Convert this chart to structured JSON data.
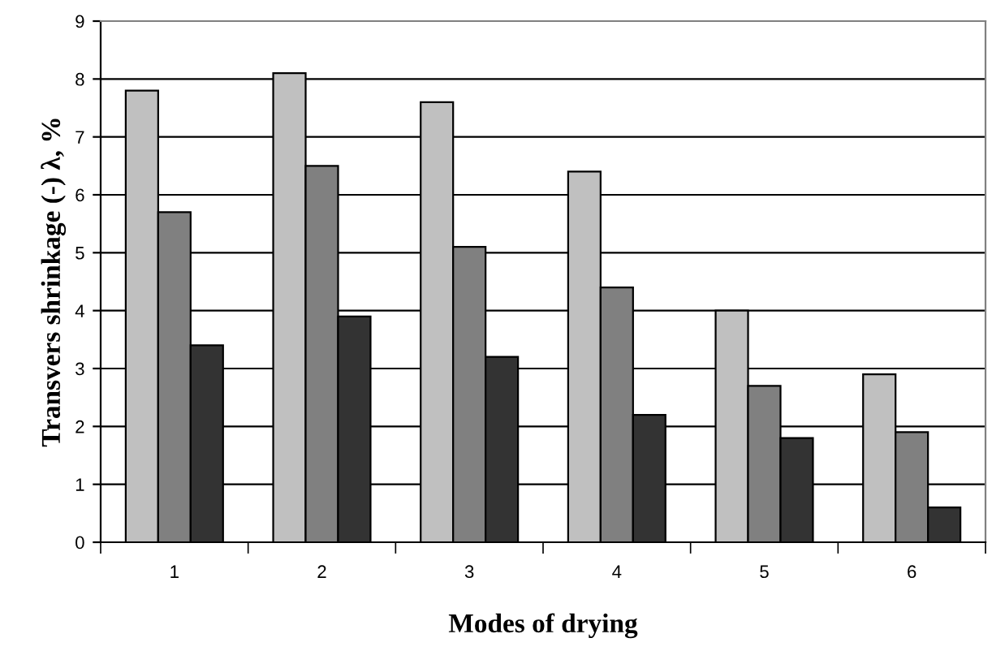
{
  "chart_data": {
    "type": "bar",
    "xlabel": "Modes of drying",
    "ylabel": "Transvers shrinkage (-) λ, %",
    "categories": [
      "1",
      "2",
      "3",
      "4",
      "5",
      "6"
    ],
    "series": [
      {
        "color": "#c0c0c0",
        "values": [
          7.8,
          8.1,
          7.6,
          6.4,
          4.0,
          2.9
        ]
      },
      {
        "color": "#808080",
        "values": [
          5.7,
          6.5,
          5.1,
          4.4,
          2.7,
          1.9
        ]
      },
      {
        "color": "#333333",
        "values": [
          3.4,
          3.9,
          3.2,
          2.2,
          1.8,
          0.6
        ]
      }
    ],
    "ylim": [
      0,
      9
    ],
    "yticks": [
      0,
      1,
      2,
      3,
      4,
      5,
      6,
      7,
      8,
      9
    ],
    "grid": "y",
    "legend": false
  }
}
